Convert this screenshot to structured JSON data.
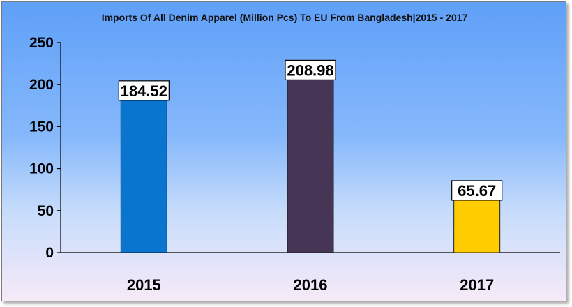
{
  "chart_data": {
    "type": "bar",
    "title": "Imports Of All Denim Apparel (Million Pcs) To EU From Bangladesh|2015 - 2017",
    "categories": [
      "2015",
      "2016",
      "2017"
    ],
    "values": [
      184.52,
      208.98,
      65.67
    ],
    "data_labels": [
      "184.52",
      "208.98",
      "65.67"
    ],
    "colors": [
      "#0a75cf",
      "#473556",
      "#ffcc00"
    ],
    "ylim": [
      0,
      250
    ],
    "yticks": [
      "0",
      "50",
      "100",
      "150",
      "200",
      "250"
    ],
    "xlabel": "",
    "ylabel": "",
    "grid": false,
    "legend": "none"
  }
}
